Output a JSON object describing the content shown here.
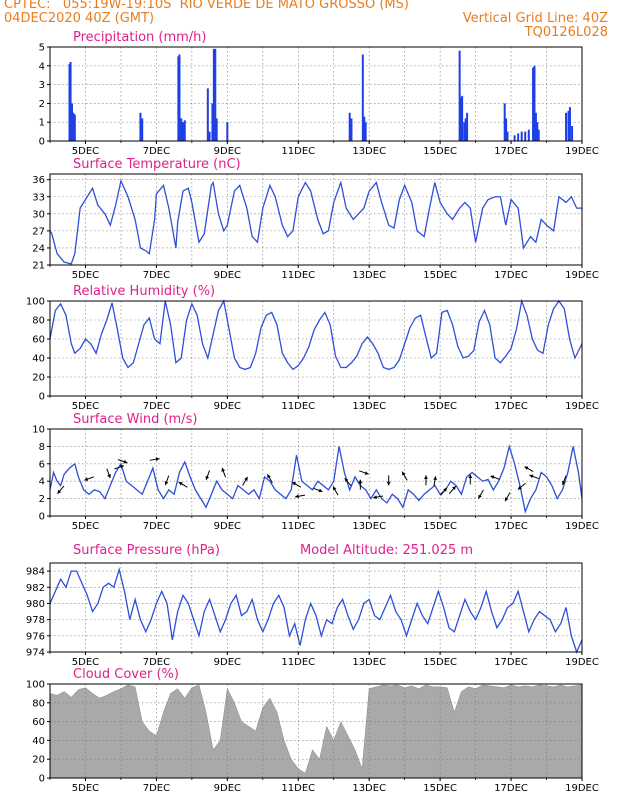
{
  "header": {
    "line1_left": "CPTEC:   055:19W-19:10S  RIO VERDE DE MATO GROSSO (MS)",
    "line2_left": "04DEC2020 40Z (GMT)",
    "line2_right": "Vertical Grid Line: 40Z",
    "line3_right": "TQ0126L028"
  },
  "x_axis": {
    "labels": [
      "5DEC",
      "7DEC",
      "9DEC",
      "11DEC",
      "13DEC",
      "15DEC",
      "17DEC",
      "19DEC"
    ],
    "xlim": [
      4.0,
      19.0
    ]
  },
  "colors": {
    "line": "#2f4fd8",
    "bar": "#1e3ee6",
    "cloud": "#a9a9a9",
    "title": "#e0208a",
    "header": "#e87d1e"
  },
  "chart_data": [
    {
      "type": "bar",
      "title": "Precipitation (mm/h)",
      "ylim": [
        0,
        5
      ],
      "yticks": [
        0,
        1,
        2,
        3,
        4,
        5
      ],
      "x": [
        4.55,
        4.58,
        4.62,
        4.66,
        4.7,
        6.55,
        6.6,
        7.62,
        7.65,
        7.7,
        7.75,
        7.8,
        8.45,
        8.5,
        8.58,
        8.62,
        8.66,
        8.7,
        9.0,
        12.45,
        12.5,
        12.82,
        12.86,
        12.9,
        15.55,
        15.6,
        15.62,
        15.68,
        15.72,
        15.76,
        16.82,
        16.86,
        16.9,
        17.1,
        17.2,
        17.3,
        17.4,
        17.5,
        17.62,
        17.66,
        17.7,
        17.74,
        17.78,
        18.55,
        18.62,
        18.66,
        18.72
      ],
      "values": [
        4.1,
        4.2,
        2.0,
        1.5,
        1.4,
        1.5,
        1.2,
        4.5,
        4.6,
        1.2,
        1.0,
        1.1,
        2.8,
        0.5,
        2.0,
        4.9,
        4.9,
        1.2,
        1.0,
        1.5,
        1.2,
        4.6,
        1.3,
        1.0,
        4.8,
        2.3,
        2.4,
        1.0,
        1.2,
        1.5,
        2.0,
        1.2,
        0.5,
        0.3,
        0.4,
        0.5,
        0.5,
        0.6,
        3.9,
        4.0,
        1.5,
        1.0,
        0.6,
        1.5,
        1.6,
        1.8,
        0.8
      ]
    },
    {
      "type": "line",
      "title": "Surface Temperature (nC)",
      "ylim": [
        21,
        37
      ],
      "yticks": [
        21,
        24,
        27,
        30,
        33,
        36
      ],
      "x": [
        4.0,
        4.05,
        4.2,
        4.4,
        4.6,
        4.7,
        4.85,
        5.05,
        5.2,
        5.35,
        5.55,
        5.7,
        5.85,
        6.0,
        6.2,
        6.4,
        6.55,
        6.7,
        6.8,
        6.95,
        7.0,
        7.2,
        7.35,
        7.55,
        7.6,
        7.75,
        7.9,
        8.0,
        8.2,
        8.35,
        8.55,
        8.6,
        8.75,
        8.9,
        9.0,
        9.2,
        9.35,
        9.55,
        9.7,
        9.85,
        10.0,
        10.2,
        10.35,
        10.55,
        10.7,
        10.85,
        11.0,
        11.2,
        11.35,
        11.55,
        11.7,
        11.85,
        12.0,
        12.2,
        12.35,
        12.55,
        12.7,
        12.85,
        13.0,
        13.2,
        13.35,
        13.55,
        13.7,
        13.85,
        14.0,
        14.2,
        14.35,
        14.55,
        14.7,
        14.85,
        15.0,
        15.2,
        15.35,
        15.55,
        15.7,
        15.85,
        16.0,
        16.2,
        16.35,
        16.55,
        16.7,
        16.85,
        17.0,
        17.2,
        17.35,
        17.55,
        17.7,
        17.85,
        18.0,
        18.2,
        18.35,
        18.55,
        18.7,
        18.85,
        19.0
      ],
      "values": [
        27.0,
        26.5,
        23.0,
        21.5,
        21.2,
        23.0,
        31.0,
        33.0,
        34.5,
        31.5,
        30.0,
        28.0,
        31.5,
        35.8,
        33.0,
        29.0,
        24.0,
        23.5,
        23.0,
        29.0,
        33.5,
        35.0,
        31.0,
        24.0,
        28.5,
        34.0,
        34.5,
        32.0,
        25.0,
        26.5,
        35.0,
        35.5,
        30.0,
        27.0,
        28.0,
        34.0,
        35.0,
        31.0,
        26.0,
        25.0,
        31.0,
        35.0,
        33.0,
        28.0,
        26.0,
        27.0,
        33.0,
        35.5,
        34.0,
        29.0,
        26.5,
        27.0,
        32.0,
        35.5,
        31.0,
        29.0,
        30.0,
        31.0,
        34.0,
        35.5,
        32.0,
        28.0,
        27.5,
        32.5,
        35.0,
        32.0,
        27.0,
        26.0,
        31.0,
        35.5,
        32.0,
        30.0,
        29.0,
        31.0,
        32.0,
        31.0,
        25.0,
        31.0,
        32.5,
        33.0,
        33.0,
        28.0,
        32.5,
        31.0,
        24.0,
        26.0,
        25.0,
        29.0,
        28.0,
        27.0,
        33.0,
        32.0,
        33.0,
        31.0,
        31.0
      ]
    },
    {
      "type": "line",
      "title": "Relative Humidity (%)",
      "ylim": [
        0,
        100
      ],
      "yticks": [
        0,
        20,
        40,
        60,
        80,
        100
      ],
      "x": [
        4.0,
        4.15,
        4.3,
        4.45,
        4.6,
        4.7,
        4.85,
        5.0,
        5.15,
        5.3,
        5.45,
        5.6,
        5.75,
        5.9,
        6.05,
        6.2,
        6.35,
        6.5,
        6.65,
        6.8,
        6.95,
        7.1,
        7.25,
        7.4,
        7.55,
        7.7,
        7.85,
        8.0,
        8.15,
        8.3,
        8.45,
        8.6,
        8.75,
        8.9,
        9.05,
        9.2,
        9.35,
        9.5,
        9.65,
        9.8,
        9.95,
        10.1,
        10.25,
        10.4,
        10.55,
        10.7,
        10.85,
        11.0,
        11.15,
        11.3,
        11.45,
        11.6,
        11.75,
        11.9,
        12.05,
        12.2,
        12.35,
        12.5,
        12.65,
        12.8,
        12.95,
        13.1,
        13.25,
        13.4,
        13.55,
        13.7,
        13.85,
        14.0,
        14.15,
        14.3,
        14.45,
        14.6,
        14.75,
        14.9,
        15.05,
        15.2,
        15.35,
        15.5,
        15.65,
        15.8,
        15.95,
        16.1,
        16.25,
        16.4,
        16.55,
        16.7,
        16.85,
        17.0,
        17.15,
        17.3,
        17.45,
        17.6,
        17.75,
        17.9,
        18.05,
        18.2,
        18.35,
        18.5,
        18.65,
        18.8,
        19.0
      ],
      "values": [
        60,
        90,
        97,
        85,
        55,
        45,
        50,
        60,
        55,
        45,
        65,
        80,
        98,
        70,
        40,
        30,
        35,
        55,
        75,
        82,
        60,
        55,
        100,
        75,
        35,
        40,
        80,
        97,
        85,
        55,
        40,
        65,
        90,
        100,
        70,
        40,
        30,
        28,
        30,
        45,
        72,
        85,
        88,
        75,
        45,
        35,
        28,
        32,
        40,
        52,
        70,
        80,
        88,
        75,
        42,
        30,
        30,
        35,
        42,
        55,
        62,
        55,
        45,
        30,
        28,
        30,
        38,
        55,
        72,
        82,
        85,
        62,
        40,
        45,
        88,
        90,
        75,
        52,
        40,
        42,
        48,
        78,
        90,
        75,
        40,
        35,
        42,
        50,
        70,
        100,
        85,
        60,
        48,
        45,
        75,
        92,
        100,
        92,
        60,
        40,
        55
      ]
    },
    {
      "type": "line",
      "title": "Surface Wind (m/s)",
      "ylim": [
        0,
        10
      ],
      "yticks": [
        0,
        2,
        4,
        6,
        8,
        10
      ],
      "x": [
        4.0,
        4.1,
        4.2,
        4.3,
        4.4,
        4.55,
        4.7,
        4.8,
        4.95,
        5.1,
        5.25,
        5.4,
        5.55,
        5.7,
        5.85,
        6.0,
        6.15,
        6.3,
        6.45,
        6.6,
        6.75,
        6.9,
        7.05,
        7.2,
        7.35,
        7.5,
        7.65,
        7.8,
        7.95,
        8.1,
        8.25,
        8.4,
        8.55,
        8.7,
        8.85,
        9.0,
        9.15,
        9.3,
        9.45,
        9.6,
        9.75,
        9.9,
        10.05,
        10.2,
        10.35,
        10.5,
        10.65,
        10.8,
        10.95,
        11.1,
        11.25,
        11.4,
        11.55,
        11.7,
        11.85,
        12.0,
        12.15,
        12.3,
        12.45,
        12.6,
        12.75,
        12.9,
        13.05,
        13.2,
        13.35,
        13.5,
        13.65,
        13.8,
        13.95,
        14.1,
        14.25,
        14.4,
        14.55,
        14.7,
        14.85,
        15.0,
        15.15,
        15.3,
        15.45,
        15.6,
        15.75,
        15.9,
        16.05,
        16.2,
        16.35,
        16.5,
        16.65,
        16.8,
        16.95,
        17.1,
        17.25,
        17.4,
        17.55,
        17.7,
        17.85,
        18.0,
        18.15,
        18.3,
        18.45,
        18.6,
        18.75,
        18.9,
        19.0
      ],
      "values": [
        3.0,
        5.0,
        4.0,
        3.5,
        4.8,
        5.5,
        6.0,
        4.5,
        3.0,
        2.5,
        3.0,
        2.8,
        2.0,
        3.5,
        5.0,
        6.0,
        4.0,
        3.5,
        3.0,
        2.5,
        4.0,
        5.5,
        3.0,
        2.0,
        3.0,
        2.5,
        5.0,
        6.2,
        4.5,
        3.0,
        2.0,
        1.0,
        2.5,
        4.0,
        3.0,
        2.5,
        2.0,
        3.5,
        3.0,
        2.5,
        3.0,
        2.0,
        4.5,
        4.0,
        3.0,
        2.5,
        2.0,
        3.0,
        7.0,
        4.0,
        3.5,
        3.0,
        4.0,
        3.5,
        3.0,
        4.0,
        8.0,
        5.0,
        3.0,
        4.5,
        3.5,
        3.0,
        2.0,
        3.0,
        2.0,
        1.5,
        2.5,
        2.0,
        1.0,
        3.0,
        2.5,
        1.8,
        2.5,
        3.0,
        3.5,
        2.5,
        3.0,
        4.0,
        3.5,
        2.5,
        4.5,
        5.0,
        4.5,
        4.0,
        4.2,
        3.0,
        4.0,
        5.5,
        8.0,
        6.0,
        3.5,
        0.5,
        2.0,
        3.0,
        5.0,
        4.5,
        3.5,
        2.0,
        3.0,
        5.0,
        8.0,
        5.0,
        2.0
      ]
    },
    {
      "type": "line",
      "title": "Surface Pressure (hPa)",
      "subtitle": "Model Altitude: 251.025 m",
      "ylim": [
        974,
        985
      ],
      "yticks": [
        974,
        976,
        978,
        980,
        982,
        984
      ],
      "x": [
        4.0,
        4.15,
        4.3,
        4.45,
        4.6,
        4.75,
        4.9,
        5.05,
        5.2,
        5.35,
        5.5,
        5.65,
        5.8,
        5.95,
        6.1,
        6.25,
        6.4,
        6.55,
        6.7,
        6.85,
        7.0,
        7.15,
        7.3,
        7.45,
        7.6,
        7.75,
        7.9,
        8.05,
        8.2,
        8.35,
        8.5,
        8.65,
        8.8,
        8.95,
        9.1,
        9.25,
        9.4,
        9.55,
        9.7,
        9.85,
        10.0,
        10.15,
        10.3,
        10.45,
        10.6,
        10.75,
        10.9,
        11.05,
        11.2,
        11.35,
        11.5,
        11.65,
        11.8,
        11.95,
        12.1,
        12.25,
        12.4,
        12.55,
        12.7,
        12.85,
        13.0,
        13.15,
        13.3,
        13.45,
        13.6,
        13.75,
        13.9,
        14.05,
        14.2,
        14.35,
        14.5,
        14.65,
        14.8,
        14.95,
        15.1,
        15.25,
        15.4,
        15.55,
        15.7,
        15.85,
        16.0,
        16.15,
        16.3,
        16.45,
        16.6,
        16.75,
        16.9,
        17.05,
        17.2,
        17.35,
        17.5,
        17.65,
        17.8,
        17.95,
        18.1,
        18.25,
        18.4,
        18.55,
        18.7,
        18.85,
        19.0
      ],
      "values": [
        980.0,
        981.5,
        983.0,
        982.0,
        984.0,
        984.0,
        982.5,
        981.0,
        979.0,
        980.0,
        982.0,
        982.5,
        982.0,
        984.2,
        981.5,
        978.0,
        980.5,
        978.0,
        976.5,
        978.0,
        980.0,
        981.5,
        980.0,
        975.5,
        979.0,
        981.0,
        980.0,
        978.0,
        976.0,
        979.0,
        980.5,
        978.5,
        976.5,
        978.0,
        980.0,
        981.0,
        978.5,
        979.0,
        980.5,
        978.0,
        976.5,
        978.0,
        980.0,
        981.0,
        979.5,
        976.0,
        977.5,
        974.8,
        978.0,
        980.0,
        978.5,
        976.0,
        978.0,
        977.5,
        979.5,
        980.5,
        978.5,
        976.8,
        978.0,
        980.0,
        980.5,
        978.5,
        978.0,
        979.5,
        981.0,
        979.0,
        978.0,
        976.0,
        978.0,
        980.0,
        978.5,
        977.5,
        979.5,
        981.5,
        979.5,
        977.0,
        976.5,
        978.5,
        980.5,
        979.0,
        978.0,
        979.5,
        981.5,
        979.0,
        977.0,
        978.0,
        979.5,
        980.0,
        981.5,
        979.0,
        976.5,
        978.0,
        979.0,
        978.5,
        978.0,
        976.5,
        977.5,
        979.5,
        976.0,
        974.0,
        975.5
      ]
    },
    {
      "type": "area",
      "title": "Cloud Cover (%)",
      "ylim": [
        0,
        100
      ],
      "yticks": [
        0,
        20,
        40,
        60,
        80,
        100
      ],
      "x": [
        4.0,
        4.2,
        4.4,
        4.6,
        4.8,
        5.0,
        5.2,
        5.4,
        5.6,
        5.8,
        6.0,
        6.2,
        6.4,
        6.6,
        6.8,
        7.0,
        7.2,
        7.4,
        7.6,
        7.8,
        8.0,
        8.2,
        8.4,
        8.6,
        8.8,
        9.0,
        9.2,
        9.4,
        9.6,
        9.8,
        10.0,
        10.2,
        10.4,
        10.6,
        10.8,
        11.0,
        11.2,
        11.4,
        11.6,
        11.8,
        12.0,
        12.2,
        12.4,
        12.6,
        12.8,
        13.0,
        13.2,
        13.4,
        13.6,
        13.8,
        14.0,
        14.2,
        14.4,
        14.6,
        14.8,
        15.0,
        15.2,
        15.4,
        15.6,
        15.8,
        16.0,
        16.2,
        16.4,
        16.6,
        16.8,
        17.0,
        17.2,
        17.4,
        17.6,
        17.8,
        18.0,
        18.2,
        18.4,
        18.6,
        18.8,
        19.0
      ],
      "values": [
        90,
        88,
        92,
        86,
        94,
        96,
        90,
        85,
        88,
        92,
        95,
        99,
        97,
        60,
        50,
        45,
        70,
        90,
        95,
        85,
        96,
        99,
        70,
        30,
        40,
        95,
        80,
        60,
        55,
        50,
        75,
        85,
        70,
        40,
        20,
        10,
        5,
        30,
        20,
        55,
        40,
        60,
        45,
        30,
        10,
        95,
        97,
        99,
        98,
        99,
        96,
        98,
        95,
        99,
        97,
        97,
        96,
        70,
        92,
        97,
        95,
        99,
        98,
        97,
        96,
        99,
        97,
        98,
        97,
        99,
        98,
        97,
        99,
        97,
        98,
        99
      ]
    }
  ],
  "wind_arrows": [
    {
      "x": 4.3,
      "y": 3.0,
      "deg": 220
    },
    {
      "x": 5.1,
      "y": 4.3,
      "deg": 250
    },
    {
      "x": 5.65,
      "y": 4.9,
      "deg": 160
    },
    {
      "x": 5.95,
      "y": 5.6,
      "deg": 70
    },
    {
      "x": 6.05,
      "y": 6.3,
      "deg": 110
    },
    {
      "x": 6.95,
      "y": 6.5,
      "deg": 80
    },
    {
      "x": 7.3,
      "y": 4.1,
      "deg": 200
    },
    {
      "x": 7.75,
      "y": 3.6,
      "deg": 300
    },
    {
      "x": 8.45,
      "y": 4.7,
      "deg": 200
    },
    {
      "x": 8.9,
      "y": 5.0,
      "deg": 340
    },
    {
      "x": 9.5,
      "y": 4.0,
      "deg": 30
    },
    {
      "x": 10.2,
      "y": 4.3,
      "deg": 330
    },
    {
      "x": 10.95,
      "y": 3.6,
      "deg": 300
    },
    {
      "x": 11.05,
      "y": 2.3,
      "deg": 260
    },
    {
      "x": 11.55,
      "y": 3.0,
      "deg": 110
    },
    {
      "x": 12.05,
      "y": 2.9,
      "deg": 330
    },
    {
      "x": 12.4,
      "y": 3.9,
      "deg": 320
    },
    {
      "x": 12.75,
      "y": 3.6,
      "deg": 0
    },
    {
      "x": 12.85,
      "y": 5.0,
      "deg": 110
    },
    {
      "x": 13.25,
      "y": 2.2,
      "deg": 260
    },
    {
      "x": 13.55,
      "y": 4.1,
      "deg": 180
    },
    {
      "x": 14.0,
      "y": 4.6,
      "deg": 330
    },
    {
      "x": 14.6,
      "y": 4.1,
      "deg": 0
    },
    {
      "x": 14.85,
      "y": 4.0,
      "deg": 10
    },
    {
      "x": 15.1,
      "y": 2.8,
      "deg": 40
    },
    {
      "x": 15.35,
      "y": 3.0,
      "deg": 40
    },
    {
      "x": 15.85,
      "y": 4.2,
      "deg": 0
    },
    {
      "x": 16.15,
      "y": 2.5,
      "deg": 210
    },
    {
      "x": 16.55,
      "y": 4.4,
      "deg": 290
    },
    {
      "x": 16.9,
      "y": 2.2,
      "deg": 210
    },
    {
      "x": 17.3,
      "y": 3.4,
      "deg": 230
    },
    {
      "x": 17.5,
      "y": 5.4,
      "deg": 300
    },
    {
      "x": 17.65,
      "y": 4.5,
      "deg": 290
    },
    {
      "x": 18.5,
      "y": 4.1,
      "deg": 200
    }
  ]
}
